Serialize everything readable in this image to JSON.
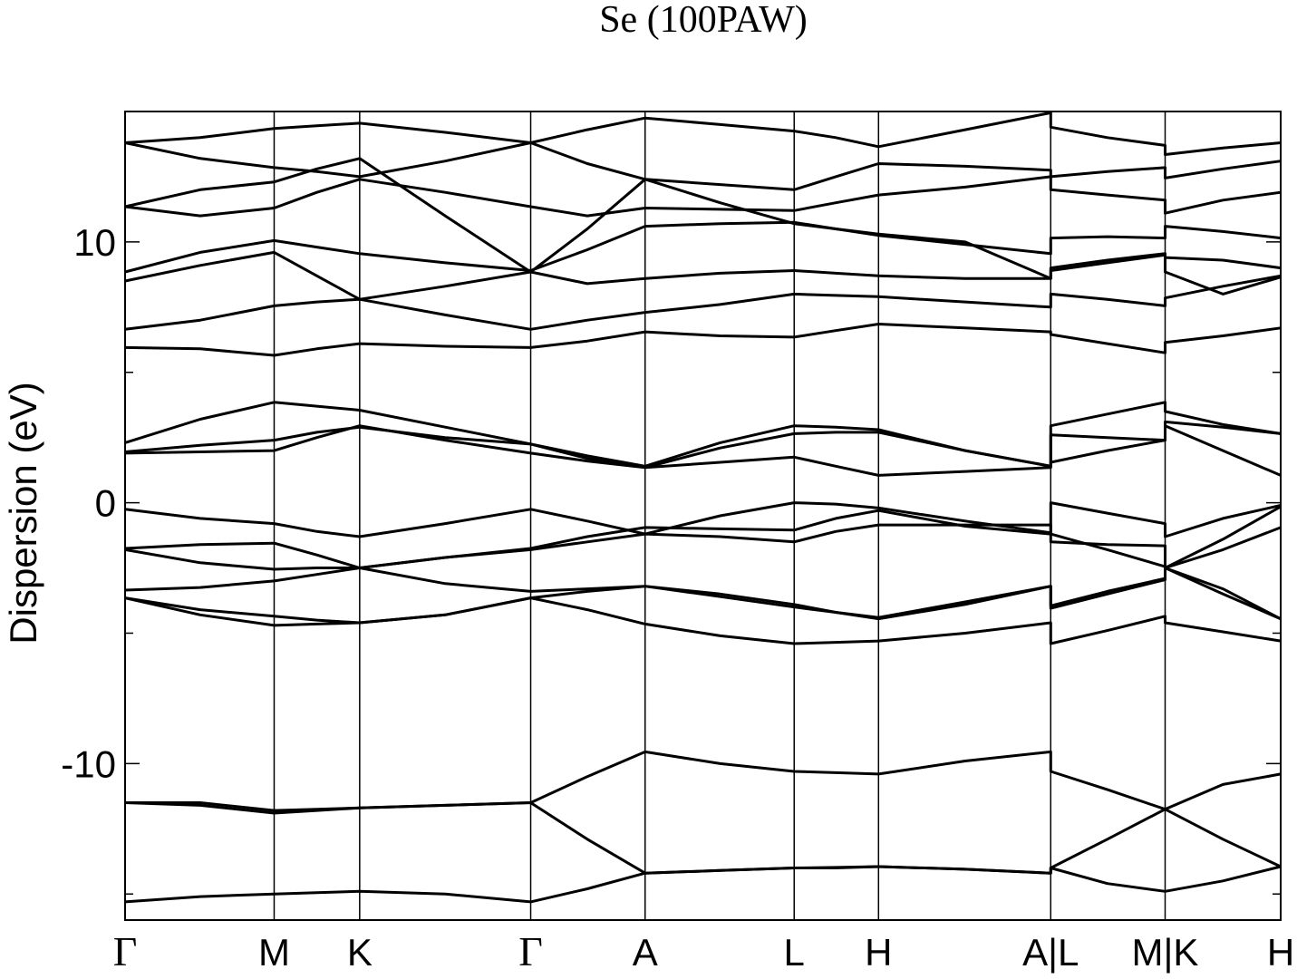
{
  "chart_data": {
    "type": "line",
    "title": "Se (100PAW)",
    "y_label": "Dispersion (eV)",
    "color": "#000000",
    "xlim": [
      0,
      1
    ],
    "ylim": [
      -16,
      15
    ],
    "xticks": [
      {
        "value": 0,
        "label": "Γ"
      },
      {
        "value": 0.129,
        "label": "M"
      },
      {
        "value": 0.203,
        "label": "K"
      },
      {
        "value": 0.351,
        "label": "Γ"
      },
      {
        "value": 0.45,
        "label": "A"
      },
      {
        "value": 0.579,
        "label": "L"
      },
      {
        "value": 0.652,
        "label": "H"
      },
      {
        "value": 0.801,
        "label": "A|L"
      },
      {
        "value": 0.9,
        "label": "M|K"
      },
      {
        "value": 1,
        "label": "H"
      }
    ],
    "yticks": [
      -10,
      0,
      10
    ],
    "yminorticks": [
      -15,
      -5,
      5,
      15
    ],
    "x": [
      0,
      0.065,
      0.129,
      0.166,
      0.203,
      0.277,
      0.351,
      0.4,
      0.45,
      0.515,
      0.579,
      0.615,
      0.652,
      0.727,
      0.801,
      0.801,
      0.85,
      0.9,
      0.9,
      0.95,
      1
    ],
    "series": [
      {
        "values": [
          -15.3,
          -15.1,
          -15.0,
          -14.95,
          -14.9,
          -15.0,
          -15.3,
          -14.8,
          -14.2,
          -14.1,
          -14.0,
          -14.0,
          -13.95,
          -14.05,
          -14.2,
          -14.0,
          -14.6,
          -14.9,
          -14.9,
          -14.5,
          -13.95
        ]
      },
      {
        "values": [
          -11.5,
          -11.6,
          -11.9,
          -11.8,
          -11.7,
          -11.6,
          -11.5,
          -12.9,
          -14.2,
          -14.1,
          -14.0,
          -13.98,
          -13.95,
          -14.05,
          -14.2,
          -14.0,
          -12.9,
          -11.75,
          -11.75,
          -12.9,
          -13.95
        ]
      },
      {
        "values": [
          -11.5,
          -11.5,
          -11.8,
          -11.75,
          -11.7,
          -11.6,
          -11.5,
          -10.5,
          -9.55,
          -10.0,
          -10.3,
          -10.35,
          -10.4,
          -9.9,
          -9.55,
          -10.3,
          -11.0,
          -11.75,
          -11.75,
          -10.8,
          -10.4
        ]
      },
      {
        "values": [
          -3.65,
          -4.3,
          -4.7,
          -4.65,
          -4.6,
          -4.3,
          -3.65,
          -4.1,
          -4.65,
          -5.1,
          -5.4,
          -5.35,
          -5.3,
          -5.0,
          -4.6,
          -5.4,
          -4.9,
          -4.35,
          -4.6,
          -4.95,
          -5.3
        ]
      },
      {
        "values": [
          -3.65,
          -4.1,
          -4.35,
          -4.5,
          -4.6,
          -4.3,
          -3.65,
          -3.4,
          -3.2,
          -3.5,
          -3.9,
          -4.2,
          -4.45,
          -3.9,
          -3.2,
          -4.05,
          -3.5,
          -2.95,
          -2.5,
          -3.5,
          -4.45
        ]
      },
      {
        "values": [
          -3.35,
          -3.25,
          -3.0,
          -2.75,
          -2.5,
          -3.1,
          -3.4,
          -3.3,
          -3.2,
          -3.6,
          -4.0,
          -4.2,
          -4.4,
          -3.8,
          -3.2,
          -3.95,
          -3.4,
          -2.9,
          -2.5,
          -3.3,
          -4.45
        ]
      },
      {
        "values": [
          -1.8,
          -2.3,
          -2.55,
          -2.5,
          -2.5,
          -2.1,
          -1.8,
          -1.5,
          -1.2,
          -1.3,
          -1.5,
          -1.1,
          -0.85,
          -0.85,
          -0.85,
          -1.5,
          -1.6,
          -1.65,
          -2.5,
          -1.8,
          -0.95
        ]
      },
      {
        "values": [
          -1.75,
          -1.6,
          -1.55,
          -2.0,
          -2.5,
          -2.1,
          -1.75,
          -1.3,
          -0.95,
          -1.0,
          -1.05,
          -0.6,
          -0.3,
          -0.9,
          -1.2,
          -1.2,
          -1.8,
          -2.45,
          -2.5,
          -1.4,
          -0.15
        ]
      },
      {
        "values": [
          -0.25,
          -0.6,
          -0.8,
          -1.1,
          -1.3,
          -0.8,
          -0.25,
          -0.7,
          -1.2,
          -0.5,
          0.0,
          -0.05,
          -0.2,
          -0.7,
          -1.15,
          0.0,
          -0.4,
          -0.8,
          -1.3,
          -0.6,
          -0.1
        ]
      },
      {
        "values": [
          1.9,
          1.95,
          2.0,
          2.5,
          2.95,
          2.4,
          1.9,
          1.6,
          1.35,
          1.55,
          1.75,
          1.4,
          1.05,
          1.2,
          1.35,
          1.55,
          2.0,
          2.4,
          2.95,
          2.0,
          1.05
        ]
      },
      {
        "values": [
          1.95,
          2.2,
          2.4,
          2.7,
          2.9,
          2.5,
          2.25,
          1.7,
          1.35,
          2.1,
          2.65,
          2.7,
          2.7,
          2.0,
          1.4,
          2.6,
          2.5,
          2.4,
          3.1,
          2.9,
          2.65
        ]
      },
      {
        "values": [
          2.3,
          3.2,
          3.85,
          3.7,
          3.55,
          2.9,
          2.25,
          1.8,
          1.4,
          2.3,
          2.95,
          2.9,
          2.8,
          2.0,
          1.4,
          2.95,
          3.4,
          3.85,
          3.5,
          3.0,
          2.65
        ]
      },
      {
        "values": [
          5.95,
          5.9,
          5.65,
          5.9,
          6.1,
          6.0,
          5.95,
          6.2,
          6.55,
          6.4,
          6.35,
          6.6,
          6.85,
          6.7,
          6.55,
          6.45,
          6.1,
          5.75,
          6.15,
          6.4,
          6.7
        ]
      },
      {
        "values": [
          6.65,
          7.0,
          7.55,
          7.7,
          7.8,
          7.2,
          6.65,
          7.0,
          7.3,
          7.6,
          8.0,
          7.95,
          7.9,
          7.7,
          7.5,
          8.0,
          7.8,
          7.55,
          7.85,
          8.3,
          8.7
        ]
      },
      {
        "values": [
          8.5,
          9.1,
          9.6,
          8.7,
          7.8,
          8.3,
          8.85,
          8.4,
          8.6,
          8.8,
          8.9,
          8.8,
          8.7,
          8.6,
          8.6,
          9.0,
          9.3,
          9.55,
          8.85,
          8.0,
          8.65
        ]
      },
      {
        "values": [
          8.85,
          9.6,
          10.05,
          9.8,
          9.55,
          9.2,
          8.9,
          9.7,
          10.6,
          10.7,
          10.75,
          10.5,
          10.25,
          9.9,
          9.55,
          10.15,
          10.2,
          10.15,
          10.6,
          10.4,
          10.15
        ]
      },
      {
        "values": [
          11.35,
          11.0,
          11.3,
          11.9,
          12.4,
          11.9,
          11.35,
          11.0,
          11.3,
          11.25,
          11.2,
          11.5,
          11.8,
          12.1,
          12.5,
          12.0,
          11.8,
          11.6,
          11.1,
          11.6,
          11.9
        ]
      },
      {
        "values": [
          13.8,
          13.2,
          12.85,
          12.7,
          12.5,
          13.1,
          13.8,
          13.0,
          12.4,
          12.2,
          12.0,
          12.5,
          13.0,
          12.9,
          12.75,
          12.5,
          12.7,
          12.85,
          12.45,
          12.8,
          13.1
        ]
      },
      {
        "values": [
          13.8,
          14.0,
          14.35,
          14.45,
          14.55,
          14.2,
          13.8,
          14.3,
          14.75,
          14.5,
          14.25,
          14.0,
          13.65,
          14.3,
          14.95,
          14.4,
          14.0,
          13.7,
          13.35,
          13.6,
          13.8
        ]
      },
      {
        "values": [
          11.35,
          12.0,
          12.3,
          12.8,
          13.2,
          11.0,
          8.85,
          10.5,
          12.4,
          11.5,
          10.7,
          10.5,
          10.3,
          10.0,
          8.6,
          8.9,
          9.2,
          9.5,
          9.4,
          9.3,
          9.0
        ]
      }
    ]
  }
}
